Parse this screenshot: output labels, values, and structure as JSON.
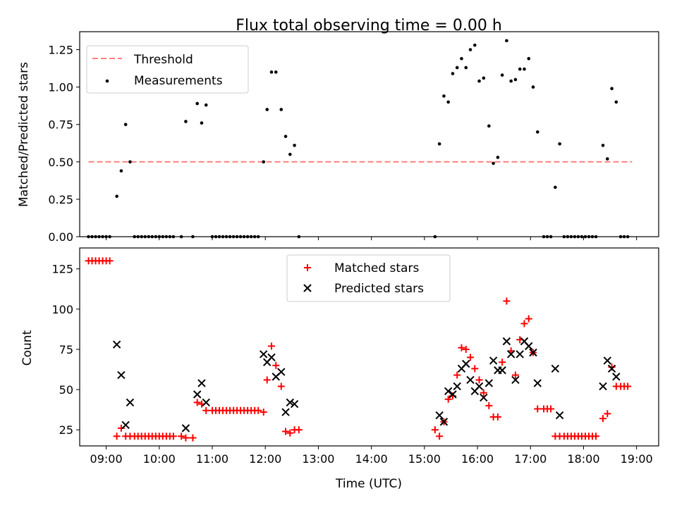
{
  "chart_data": [
    {
      "type": "scatter",
      "title": "Flux total observing time = 0.00 h",
      "xlabel": "",
      "ylabel": "Matched/Predicted stars",
      "xlim": [
        "08:30",
        "19:25"
      ],
      "ylim": [
        0,
        1.37
      ],
      "x_ticks": [
        "09:00",
        "10:00",
        "11:00",
        "12:00",
        "13:00",
        "14:00",
        "15:00",
        "16:00",
        "17:00",
        "18:00",
        "19:00"
      ],
      "y_ticks": [
        "0.00",
        "0.25",
        "0.50",
        "0.75",
        "1.00",
        "1.25"
      ],
      "legend": {
        "placement": "top-left",
        "entries": [
          "Threshold",
          "Measurements"
        ]
      },
      "colors": {
        "threshold": "#ff7f7f",
        "measurements": "#000000"
      },
      "series": [
        {
          "name": "Threshold",
          "kind": "dashed-line",
          "x": [
            "08:40",
            "18:55"
          ],
          "y": [
            0.5,
            0.5
          ]
        },
        {
          "name": "Measurements",
          "kind": "points",
          "points": [
            [
              "08:40",
              0
            ],
            [
              "08:44",
              0
            ],
            [
              "08:48",
              0
            ],
            [
              "08:52",
              0
            ],
            [
              "08:56",
              0
            ],
            [
              "09:00",
              0
            ],
            [
              "09:04",
              0
            ],
            [
              "09:12",
              0.27
            ],
            [
              "09:17",
              0.44
            ],
            [
              "09:22",
              0.75
            ],
            [
              "09:27",
              0.5
            ],
            [
              "09:32",
              0
            ],
            [
              "09:36",
              0
            ],
            [
              "09:40",
              0
            ],
            [
              "09:44",
              0
            ],
            [
              "09:48",
              0
            ],
            [
              "09:52",
              0
            ],
            [
              "09:56",
              0
            ],
            [
              "10:00",
              0
            ],
            [
              "10:04",
              0
            ],
            [
              "10:08",
              0
            ],
            [
              "10:12",
              0
            ],
            [
              "10:16",
              0
            ],
            [
              "10:25",
              0
            ],
            [
              "10:30",
              0.77
            ],
            [
              "10:38",
              0
            ],
            [
              "10:43",
              0.89
            ],
            [
              "10:48",
              0.76
            ],
            [
              "10:53",
              0.88
            ],
            [
              "11:00",
              0
            ],
            [
              "11:04",
              0
            ],
            [
              "11:08",
              0
            ],
            [
              "11:12",
              0
            ],
            [
              "11:16",
              0
            ],
            [
              "11:20",
              0
            ],
            [
              "11:24",
              0
            ],
            [
              "11:28",
              0
            ],
            [
              "11:32",
              0
            ],
            [
              "11:36",
              0
            ],
            [
              "11:40",
              0
            ],
            [
              "11:44",
              0
            ],
            [
              "11:48",
              0
            ],
            [
              "11:52",
              0
            ],
            [
              "11:58",
              0.5
            ],
            [
              "12:02",
              0.85
            ],
            [
              "12:07",
              1.1
            ],
            [
              "12:12",
              1.1
            ],
            [
              "12:18",
              0.85
            ],
            [
              "12:23",
              0.67
            ],
            [
              "12:28",
              0.55
            ],
            [
              "12:33",
              0.61
            ],
            [
              "12:38",
              0
            ],
            [
              "15:12",
              0
            ],
            [
              "15:17",
              0.62
            ],
            [
              "15:22",
              0.94
            ],
            [
              "15:27",
              0.9
            ],
            [
              "15:32",
              1.09
            ],
            [
              "15:37",
              1.13
            ],
            [
              "15:42",
              1.19
            ],
            [
              "15:47",
              1.13
            ],
            [
              "15:52",
              1.25
            ],
            [
              "15:57",
              1.28
            ],
            [
              "16:02",
              1.04
            ],
            [
              "16:07",
              1.06
            ],
            [
              "16:13",
              0.74
            ],
            [
              "16:18",
              0.49
            ],
            [
              "16:23",
              0.53
            ],
            [
              "16:28",
              1.08
            ],
            [
              "16:33",
              1.31
            ],
            [
              "16:38",
              1.04
            ],
            [
              "16:43",
              1.05
            ],
            [
              "16:48",
              1.12
            ],
            [
              "16:53",
              1.12
            ],
            [
              "16:58",
              1.19
            ],
            [
              "17:03",
              1.0
            ],
            [
              "17:08",
              0.7
            ],
            [
              "17:15",
              0
            ],
            [
              "17:19",
              0
            ],
            [
              "17:23",
              0
            ],
            [
              "17:28",
              0.33
            ],
            [
              "17:33",
              0.62
            ],
            [
              "17:38",
              0
            ],
            [
              "17:42",
              0
            ],
            [
              "17:46",
              0
            ],
            [
              "17:50",
              0
            ],
            [
              "17:54",
              0
            ],
            [
              "17:58",
              0
            ],
            [
              "18:02",
              0
            ],
            [
              "18:06",
              0
            ],
            [
              "18:10",
              0
            ],
            [
              "18:14",
              0
            ],
            [
              "18:22",
              0.61
            ],
            [
              "18:27",
              0.52
            ],
            [
              "18:32",
              0.99
            ],
            [
              "18:37",
              0.9
            ],
            [
              "18:42",
              0
            ],
            [
              "18:46",
              0
            ],
            [
              "18:50",
              0
            ]
          ]
        }
      ]
    },
    {
      "type": "scatter",
      "title": "",
      "xlabel": "Time (UTC)",
      "ylabel": "Count",
      "xlim": [
        "08:30",
        "19:25"
      ],
      "ylim": [
        15,
        138
      ],
      "x_ticks": [
        "09:00",
        "10:00",
        "11:00",
        "12:00",
        "13:00",
        "14:00",
        "15:00",
        "16:00",
        "17:00",
        "18:00",
        "19:00"
      ],
      "y_ticks": [
        "25",
        "50",
        "75",
        "100",
        "125"
      ],
      "legend": {
        "placement": "top-center",
        "entries": [
          "Matched stars",
          "Predicted stars"
        ]
      },
      "colors": {
        "matched": "#ff0000",
        "predicted": "#000000"
      },
      "series": [
        {
          "name": "Matched stars",
          "marker": "plus",
          "points": [
            [
              "08:40",
              130
            ],
            [
              "08:44",
              130
            ],
            [
              "08:48",
              130
            ],
            [
              "08:52",
              130
            ],
            [
              "08:56",
              130
            ],
            [
              "09:00",
              130
            ],
            [
              "09:04",
              130
            ],
            [
              "09:12",
              21
            ],
            [
              "09:17",
              26
            ],
            [
              "09:22",
              21
            ],
            [
              "09:27",
              21
            ],
            [
              "09:32",
              21
            ],
            [
              "09:36",
              21
            ],
            [
              "09:40",
              21
            ],
            [
              "09:44",
              21
            ],
            [
              "09:48",
              21
            ],
            [
              "09:52",
              21
            ],
            [
              "09:56",
              21
            ],
            [
              "10:00",
              21
            ],
            [
              "10:04",
              21
            ],
            [
              "10:08",
              21
            ],
            [
              "10:12",
              21
            ],
            [
              "10:16",
              21
            ],
            [
              "10:25",
              21
            ],
            [
              "10:30",
              20
            ],
            [
              "10:38",
              20
            ],
            [
              "10:43",
              42
            ],
            [
              "10:48",
              41
            ],
            [
              "10:53",
              37
            ],
            [
              "11:00",
              37
            ],
            [
              "11:04",
              37
            ],
            [
              "11:08",
              37
            ],
            [
              "11:12",
              37
            ],
            [
              "11:16",
              37
            ],
            [
              "11:20",
              37
            ],
            [
              "11:24",
              37
            ],
            [
              "11:28",
              37
            ],
            [
              "11:32",
              37
            ],
            [
              "11:36",
              37
            ],
            [
              "11:40",
              37
            ],
            [
              "11:44",
              37
            ],
            [
              "11:48",
              37
            ],
            [
              "11:52",
              37
            ],
            [
              "11:58",
              36
            ],
            [
              "12:02",
              56
            ],
            [
              "12:07",
              77
            ],
            [
              "12:12",
              65
            ],
            [
              "12:18",
              52
            ],
            [
              "12:23",
              24
            ],
            [
              "12:28",
              23
            ],
            [
              "12:33",
              25
            ],
            [
              "12:38",
              25
            ],
            [
              "15:12",
              25
            ],
            [
              "15:17",
              21
            ],
            [
              "15:22",
              30
            ],
            [
              "15:27",
              44
            ],
            [
              "15:32",
              46
            ],
            [
              "15:37",
              59
            ],
            [
              "15:42",
              76
            ],
            [
              "15:47",
              75
            ],
            [
              "15:52",
              70
            ],
            [
              "15:57",
              63
            ],
            [
              "16:02",
              56
            ],
            [
              "16:07",
              48
            ],
            [
              "16:13",
              40
            ],
            [
              "16:18",
              33
            ],
            [
              "16:23",
              33
            ],
            [
              "16:28",
              67
            ],
            [
              "16:33",
              105
            ],
            [
              "16:38",
              74
            ],
            [
              "16:43",
              59
            ],
            [
              "16:48",
              81
            ],
            [
              "16:53",
              91
            ],
            [
              "16:58",
              94
            ],
            [
              "17:03",
              73
            ],
            [
              "17:08",
              38
            ],
            [
              "17:15",
              38
            ],
            [
              "17:19",
              38
            ],
            [
              "17:23",
              38
            ],
            [
              "17:28",
              21
            ],
            [
              "17:33",
              21
            ],
            [
              "17:38",
              21
            ],
            [
              "17:42",
              21
            ],
            [
              "17:46",
              21
            ],
            [
              "17:50",
              21
            ],
            [
              "17:54",
              21
            ],
            [
              "17:58",
              21
            ],
            [
              "18:02",
              21
            ],
            [
              "18:06",
              21
            ],
            [
              "18:10",
              21
            ],
            [
              "18:14",
              21
            ],
            [
              "18:22",
              32
            ],
            [
              "18:27",
              35
            ],
            [
              "18:32",
              64
            ],
            [
              "18:37",
              52
            ],
            [
              "18:42",
              52
            ],
            [
              "18:46",
              52
            ],
            [
              "18:50",
              52
            ]
          ]
        },
        {
          "name": "Predicted stars",
          "marker": "x",
          "points": [
            [
              "09:12",
              78
            ],
            [
              "09:17",
              59
            ],
            [
              "09:22",
              28
            ],
            [
              "09:27",
              42
            ],
            [
              "10:30",
              26
            ],
            [
              "10:43",
              47
            ],
            [
              "10:48",
              54
            ],
            [
              "10:53",
              42
            ],
            [
              "11:58",
              72
            ],
            [
              "12:02",
              67
            ],
            [
              "12:07",
              70
            ],
            [
              "12:12",
              58
            ],
            [
              "12:18",
              61
            ],
            [
              "12:23",
              36
            ],
            [
              "12:28",
              42
            ],
            [
              "12:33",
              41
            ],
            [
              "15:17",
              34
            ],
            [
              "15:22",
              30
            ],
            [
              "15:27",
              49
            ],
            [
              "15:32",
              47
            ],
            [
              "15:37",
              52
            ],
            [
              "15:42",
              63
            ],
            [
              "15:47",
              66
            ],
            [
              "15:52",
              56
            ],
            [
              "15:57",
              49
            ],
            [
              "16:02",
              52
            ],
            [
              "16:07",
              45
            ],
            [
              "16:13",
              54
            ],
            [
              "16:18",
              68
            ],
            [
              "16:23",
              62
            ],
            [
              "16:28",
              62
            ],
            [
              "16:33",
              80
            ],
            [
              "16:38",
              72
            ],
            [
              "16:43",
              56
            ],
            [
              "16:48",
              72
            ],
            [
              "16:53",
              80
            ],
            [
              "16:58",
              77
            ],
            [
              "17:03",
              73
            ],
            [
              "17:08",
              54
            ],
            [
              "17:28",
              63
            ],
            [
              "17:33",
              34
            ],
            [
              "18:22",
              52
            ],
            [
              "18:27",
              68
            ],
            [
              "18:32",
              63
            ],
            [
              "18:37",
              58
            ]
          ]
        }
      ]
    }
  ]
}
